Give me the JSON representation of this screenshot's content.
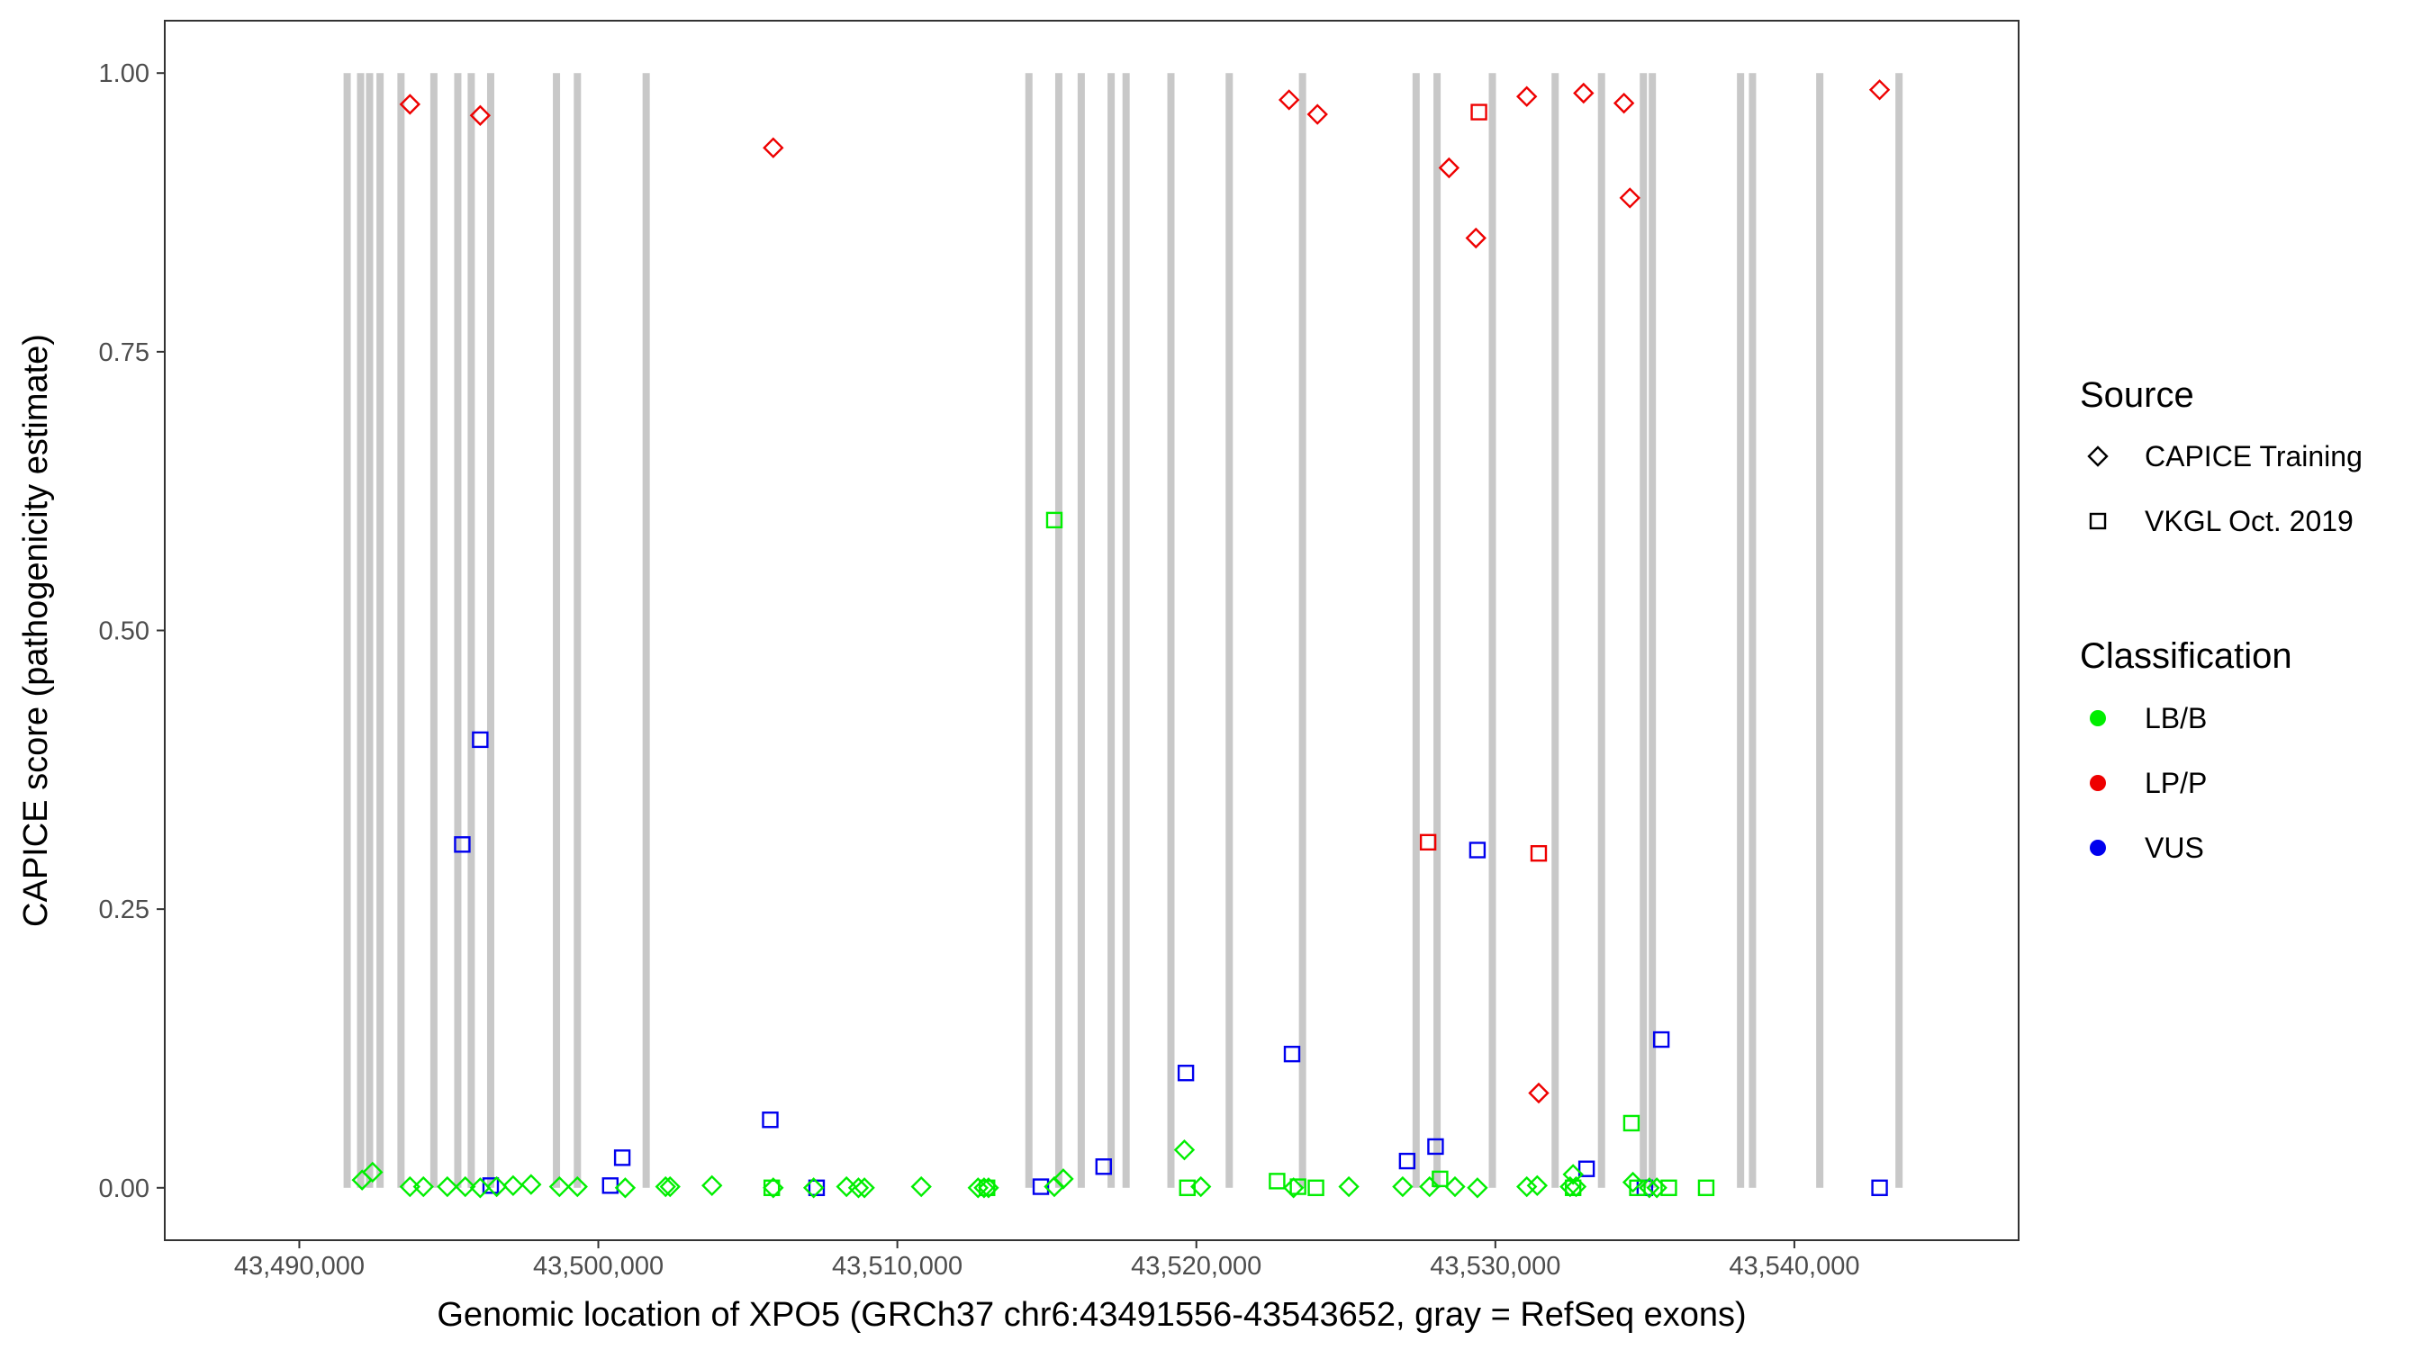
{
  "chart_data": {
    "type": "scatter",
    "title": "",
    "xlabel": "Genomic location of XPO5 (GRCh37 chr6:43491556-43543652, gray = RefSeq exons)",
    "ylabel": "CAPICE score (pathogenicity estimate)",
    "xlim": [
      43485500,
      43547500
    ],
    "ylim": [
      -0.047,
      1.047
    ],
    "x_ticks": [
      43490000,
      43500000,
      43510000,
      43520000,
      43530000,
      43540000
    ],
    "x_tick_labels": [
      "43,490,000",
      "43,500,000",
      "43,510,000",
      "43,520,000",
      "43,530,000",
      "43,540,000"
    ],
    "y_ticks": [
      0,
      0.25,
      0.5,
      0.75,
      1.0
    ],
    "y_tick_labels": [
      "0.00",
      "0.25",
      "0.50",
      "0.75",
      "1.00"
    ],
    "grid": false,
    "exon_color": "#c8c8c8",
    "exons": [
      43491600,
      43492050,
      43492350,
      43492700,
      43493400,
      43494500,
      43495300,
      43495750,
      43496400,
      43498600,
      43499300,
      43501600,
      43514400,
      43515400,
      43516150,
      43517150,
      43517650,
      43519150,
      43521100,
      43523550,
      43527350,
      43528050,
      43529900,
      43532000,
      43533550,
      43534950,
      43535250,
      43538200,
      43538600,
      43540850,
      43543500
    ],
    "legend": {
      "placement": "right",
      "source_title": "Source",
      "source_entries": [
        {
          "label": "CAPICE Training",
          "shape": "diamond"
        },
        {
          "label": "VKGL Oct. 2019",
          "shape": "square"
        }
      ],
      "classification_title": "Classification",
      "classification_entries": [
        {
          "label": "LB/B",
          "color": "#00ee00"
        },
        {
          "label": "LP/P",
          "color": "#ee0000"
        },
        {
          "label": "VUS",
          "color": "#0000ee"
        }
      ]
    },
    "series": [
      {
        "name": "LP/P",
        "source": "CAPICE Training",
        "shape": "diamond",
        "color": "#ee0000",
        "points": [
          [
            43493700,
            0.972
          ],
          [
            43496050,
            0.962
          ],
          [
            43505850,
            0.933
          ],
          [
            43523100,
            0.976
          ],
          [
            43524050,
            0.963
          ],
          [
            43528450,
            0.915
          ],
          [
            43529350,
            0.852
          ],
          [
            43531050,
            0.979
          ],
          [
            43532950,
            0.982
          ],
          [
            43534300,
            0.973
          ],
          [
            43534500,
            0.888
          ],
          [
            43542850,
            0.985
          ],
          [
            43531450,
            0.085
          ]
        ]
      },
      {
        "name": "LP/P",
        "source": "VKGL Oct. 2019",
        "shape": "square",
        "color": "#ee0000",
        "points": [
          [
            43529450,
            0.965
          ],
          [
            43527750,
            0.31
          ],
          [
            43531450,
            0.3
          ]
        ]
      },
      {
        "name": "VUS",
        "source": "VKGL Oct. 2019",
        "shape": "square",
        "color": "#0000ee",
        "points": [
          [
            43496050,
            0.402
          ],
          [
            43495450,
            0.308
          ],
          [
            43500800,
            0.027
          ],
          [
            43505750,
            0.061
          ],
          [
            43500400,
            0.002
          ],
          [
            43496400,
            0.002
          ],
          [
            43507300,
            0.0
          ],
          [
            43514800,
            0.001
          ],
          [
            43516900,
            0.019
          ],
          [
            43519650,
            0.103
          ],
          [
            43523200,
            0.12
          ],
          [
            43527050,
            0.024
          ],
          [
            43528000,
            0.037
          ],
          [
            43529400,
            0.303
          ],
          [
            43533050,
            0.017
          ],
          [
            43535550,
            0.133
          ],
          [
            43535000,
            0.0
          ],
          [
            43542850,
            0.0
          ]
        ]
      },
      {
        "name": "LB/B",
        "source": "CAPICE Training",
        "shape": "diamond",
        "color": "#00ee00",
        "points": [
          [
            43492100,
            0.007
          ],
          [
            43492450,
            0.014
          ],
          [
            43493700,
            0.001
          ],
          [
            43494150,
            0.001
          ],
          [
            43494950,
            0.001
          ],
          [
            43495550,
            0.001
          ],
          [
            43496050,
            0.0
          ],
          [
            43496600,
            0.001
          ],
          [
            43497150,
            0.002
          ],
          [
            43497750,
            0.003
          ],
          [
            43498700,
            0.001
          ],
          [
            43499300,
            0.001
          ],
          [
            43500900,
            0.0
          ],
          [
            43502250,
            0.001
          ],
          [
            43502400,
            0.001
          ],
          [
            43503800,
            0.002
          ],
          [
            43505850,
            0.0
          ],
          [
            43507200,
            0.0
          ],
          [
            43508300,
            0.001
          ],
          [
            43508700,
            0.0
          ],
          [
            43508900,
            0.0
          ],
          [
            43510800,
            0.001
          ],
          [
            43512700,
            0.0
          ],
          [
            43512900,
            0.0
          ],
          [
            43513050,
            0.0
          ],
          [
            43515250,
            0.001
          ],
          [
            43515550,
            0.008
          ],
          [
            43519600,
            0.034
          ],
          [
            43520150,
            0.001
          ],
          [
            43523250,
            0.0
          ],
          [
            43525100,
            0.001
          ],
          [
            43526900,
            0.001
          ],
          [
            43527800,
            0.001
          ],
          [
            43528650,
            0.001
          ],
          [
            43529400,
            0.0
          ],
          [
            43531050,
            0.001
          ],
          [
            43531400,
            0.002
          ],
          [
            43532500,
            0.001
          ],
          [
            43532600,
            0.012
          ],
          [
            43532700,
            0.001
          ],
          [
            43534600,
            0.005
          ],
          [
            43535150,
            0.0
          ],
          [
            43535400,
            0.0
          ]
        ]
      },
      {
        "name": "LB/B",
        "source": "VKGL Oct. 2019",
        "shape": "square",
        "color": "#00ee00",
        "points": [
          [
            43515250,
            0.599
          ],
          [
            43534550,
            0.058
          ],
          [
            43505800,
            0.0
          ],
          [
            43513000,
            0.0
          ],
          [
            43519700,
            0.0
          ],
          [
            43522700,
            0.006
          ],
          [
            43523400,
            0.001
          ],
          [
            43524000,
            0.0
          ],
          [
            43528150,
            0.008
          ],
          [
            43532600,
            0.0
          ],
          [
            43535800,
            0.0
          ],
          [
            43537050,
            0.0
          ],
          [
            43534750,
            0.0
          ]
        ]
      }
    ]
  }
}
